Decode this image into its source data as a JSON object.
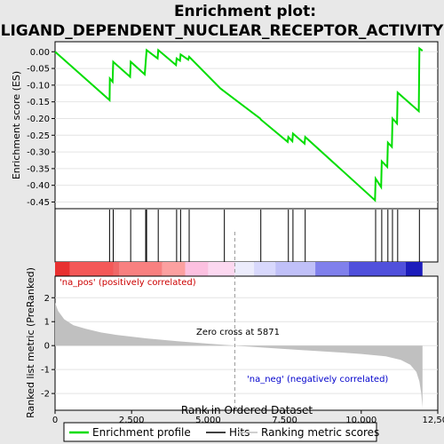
{
  "title_line1": "Enrichment plot:",
  "title_line2": "LIGAND_DEPENDENT_NUCLEAR_RECEPTOR_ACTIVITY",
  "colors": {
    "es_line": "#00dd00",
    "hits": "#000000",
    "metric_fill": "#c0c0c0",
    "zero_cross": "#999999",
    "pos_text": "#cc0000",
    "neg_text": "#0000cc"
  },
  "chart_data": {
    "type": "line",
    "x_range": [
      0,
      12500
    ],
    "x_ticks": [
      0,
      2500,
      5000,
      7500,
      10000,
      12500
    ],
    "x_tick_labels": [
      "0",
      "2,500",
      "5,000",
      "7,500",
      "10,000",
      "12,500"
    ],
    "xlabel": "Rank in Ordered Dataset",
    "panels": {
      "enrichment": {
        "ylabel": "Enrichment score (ES)",
        "ylim": [
          -0.47,
          0.03
        ],
        "y_ticks": [
          0.0,
          -0.05,
          -0.1,
          -0.15,
          -0.2,
          -0.25,
          -0.3,
          -0.35,
          -0.4,
          -0.45
        ],
        "y_tick_labels": [
          "0.00",
          "-0.05",
          "-0.10",
          "-0.15",
          "-0.20",
          "-0.25",
          "-0.30",
          "-0.35",
          "-0.40",
          "-0.45"
        ],
        "series_name": "Enrichment profile",
        "points": [
          [
            0,
            0.0
          ],
          [
            1780,
            -0.145
          ],
          [
            1790,
            -0.08
          ],
          [
            1880,
            -0.09
          ],
          [
            1900,
            -0.03
          ],
          [
            2450,
            -0.075
          ],
          [
            2470,
            -0.03
          ],
          [
            2930,
            -0.068
          ],
          [
            2960,
            -0.03
          ],
          [
            2990,
            0.005
          ],
          [
            3350,
            -0.02
          ],
          [
            3370,
            0.005
          ],
          [
            3950,
            -0.04
          ],
          [
            3970,
            -0.02
          ],
          [
            4080,
            -0.027
          ],
          [
            4100,
            -0.008
          ],
          [
            4350,
            -0.024
          ],
          [
            4380,
            -0.015
          ],
          [
            5400,
            -0.11
          ],
          [
            6700,
            -0.2
          ],
          [
            6720,
            -0.203
          ],
          [
            7600,
            -0.27
          ],
          [
            7620,
            -0.255
          ],
          [
            7750,
            -0.268
          ],
          [
            7770,
            -0.245
          ],
          [
            8150,
            -0.275
          ],
          [
            8170,
            -0.255
          ],
          [
            10450,
            -0.445
          ],
          [
            10470,
            -0.38
          ],
          [
            10650,
            -0.405
          ],
          [
            10670,
            -0.328
          ],
          [
            10850,
            -0.345
          ],
          [
            10870,
            -0.272
          ],
          [
            11000,
            -0.285
          ],
          [
            11020,
            -0.2
          ],
          [
            11170,
            -0.215
          ],
          [
            11190,
            -0.122
          ],
          [
            11880,
            -0.178
          ],
          [
            11900,
            0.01
          ],
          [
            12000,
            0.003
          ]
        ]
      },
      "hits": {
        "series_name": "Hits",
        "positions": [
          1780,
          1900,
          2470,
          2960,
          2990,
          3370,
          3970,
          4100,
          4380,
          5530,
          6720,
          7620,
          7770,
          8170,
          10470,
          10670,
          10870,
          11020,
          11190,
          11900
        ]
      },
      "color_bar": {
        "segments": [
          {
            "start": 0,
            "end": 480,
            "color": "#e83030"
          },
          {
            "start": 480,
            "end": 1900,
            "color": "#f45858"
          },
          {
            "start": 1900,
            "end": 2100,
            "color": "#f06868"
          },
          {
            "start": 2100,
            "end": 3500,
            "color": "#f88080"
          },
          {
            "start": 3500,
            "end": 4250,
            "color": "#fca0a0"
          },
          {
            "start": 4250,
            "end": 5000,
            "color": "#fcc0e0"
          },
          {
            "start": 5000,
            "end": 5871,
            "color": "#fcd8f0"
          },
          {
            "start": 5871,
            "end": 6500,
            "color": "#ececfc"
          },
          {
            "start": 6500,
            "end": 7200,
            "color": "#d8d8fc"
          },
          {
            "start": 7200,
            "end": 8500,
            "color": "#c0c0f8"
          },
          {
            "start": 8500,
            "end": 9600,
            "color": "#8080ec"
          },
          {
            "start": 9600,
            "end": 11450,
            "color": "#5050dc"
          },
          {
            "start": 11450,
            "end": 12000,
            "color": "#1c1cbc"
          }
        ]
      },
      "metric": {
        "ylabel": "Ranked list metric (PreRanked)",
        "ylim": [
          -2.7,
          2.9
        ],
        "y_ticks": [
          2,
          1,
          0,
          -1,
          -2
        ],
        "y_tick_labels": [
          "2",
          "1",
          "0",
          "-1",
          "-2"
        ],
        "series_name": "Ranking metric scores",
        "points": [
          [
            0,
            1.8
          ],
          [
            100,
            1.45
          ],
          [
            300,
            1.1
          ],
          [
            600,
            0.85
          ],
          [
            1000,
            0.7
          ],
          [
            1500,
            0.55
          ],
          [
            2000,
            0.45
          ],
          [
            3000,
            0.3
          ],
          [
            4000,
            0.18
          ],
          [
            5000,
            0.08
          ],
          [
            5871,
            0.0
          ],
          [
            7000,
            -0.1
          ],
          [
            8000,
            -0.18
          ],
          [
            9000,
            -0.26
          ],
          [
            10000,
            -0.35
          ],
          [
            10800,
            -0.45
          ],
          [
            11300,
            -0.6
          ],
          [
            11600,
            -0.8
          ],
          [
            11800,
            -1.1
          ],
          [
            11900,
            -1.5
          ],
          [
            11960,
            -2.0
          ],
          [
            12000,
            -2.6
          ]
        ],
        "zero_cross_rank": 5871,
        "zero_cross_label": "Zero cross at 5871",
        "pos_label": "'na_pos' (positively correlated)",
        "neg_label": "'na_neg' (negatively correlated)"
      }
    },
    "legend": {
      "placement": "bottom",
      "items": [
        {
          "label": "Enrichment profile",
          "kind": "line",
          "color": "#00dd00"
        },
        {
          "label": "Hits",
          "kind": "line",
          "color": "#000000"
        },
        {
          "label": "Ranking metric scores",
          "kind": "line",
          "color": "#c0c0c0"
        }
      ]
    }
  }
}
